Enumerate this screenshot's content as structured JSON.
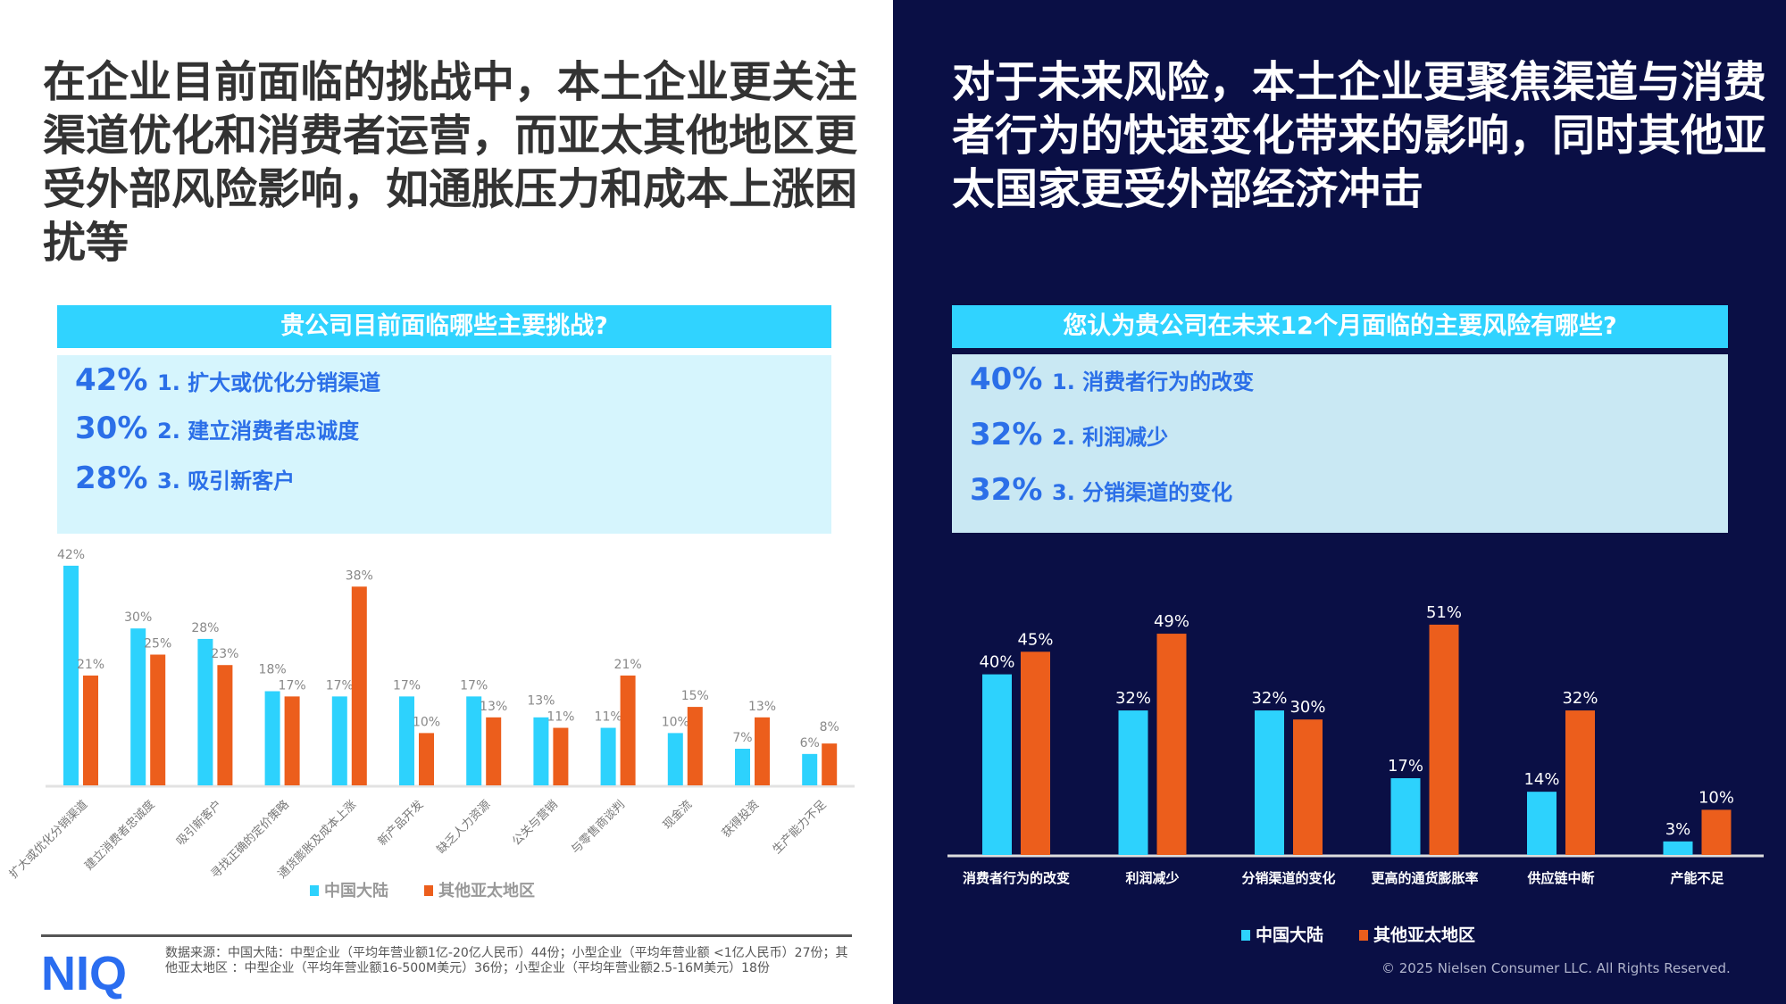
{
  "left": {
    "title": "在企业目前面临的挑战中，本土企业更关注渠道优化和消费者运营，而亚太其他地区更受外部风险影响，如通胀压力和成本上涨困扰等",
    "question": "贵公司目前面临哪些主要挑战?",
    "top_items": [
      {
        "pct": "42%",
        "label": "1. 扩大或优化分销渠道"
      },
      {
        "pct": "30%",
        "label": "2. 建立消费者忠诚度"
      },
      {
        "pct": "28%",
        "label": "3. 吸引新客户"
      }
    ],
    "source": "数据来源：中国大陆：中型企业（平均年营业额1亿-20亿人民币）44份；小型企业（平均年营业额 <1亿人民币）27份；其他亚太地区 ：中型企业（平均年营业额16-500M美元）36份；小型企业（平均年营业额2.5-16M美元）18份",
    "logo": "NIQ"
  },
  "right": {
    "title": "对于未来风险，本土企业更聚焦渠道与消费者行为的快速变化带来的影响，同时其他亚太国家更受外部经济冲击",
    "question": "您认为贵公司在未来12个月面临的主要风险有哪些?",
    "top_items": [
      {
        "pct": "40%",
        "label": "1. 消费者行为的改变"
      },
      {
        "pct": "32%",
        "label": "2. 利润减少"
      },
      {
        "pct": "32%",
        "label": "3. 分销渠道的变化"
      }
    ],
    "copyright": "© 2025 Nielsen Consumer LLC. All Rights Reserved."
  },
  "colors": {
    "china": "#2dd2fd",
    "apac": "#ec5e1c",
    "navy": "#0a0f45",
    "accent_blue": "#2b6fe8"
  },
  "chart_data": [
    {
      "type": "bar",
      "categories": [
        "扩大或优化分销渠道",
        "建立消费者忠诚度",
        "吸引新客户",
        "寻找正确的定价策略",
        "通货膨胀及成本上涨",
        "新产品开发",
        "缺乏人力资源",
        "公关与营销",
        "与零售商谈判",
        "现金流",
        "获得投资",
        "生产能力不足"
      ],
      "series": [
        {
          "name": "中国大陆",
          "values": [
            42,
            30,
            28,
            18,
            17,
            17,
            17,
            13,
            11,
            10,
            7,
            6
          ]
        },
        {
          "name": "其他亚太地区",
          "values": [
            21,
            25,
            23,
            17,
            38,
            10,
            13,
            11,
            21,
            15,
            13,
            8
          ]
        }
      ],
      "unit": "%",
      "legend": "bottom",
      "grid": false,
      "ylim": [
        0,
        42
      ]
    },
    {
      "type": "bar",
      "categories": [
        "消费者行为的改变",
        "利润减少",
        "分销渠道的变化",
        "更高的通货膨胀率",
        "供应链中断",
        "产能不足"
      ],
      "series": [
        {
          "name": "中国大陆",
          "values": [
            40,
            32,
            32,
            17,
            14,
            3
          ]
        },
        {
          "name": "其他亚太地区",
          "values": [
            45,
            49,
            30,
            51,
            32,
            10
          ]
        }
      ],
      "unit": "%",
      "legend": "bottom",
      "grid": false,
      "ylim": [
        0,
        51
      ]
    }
  ]
}
